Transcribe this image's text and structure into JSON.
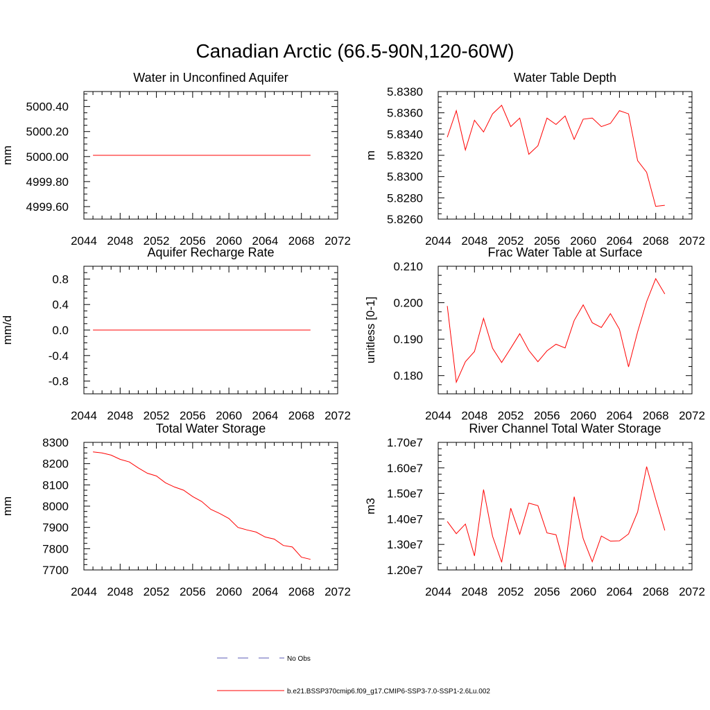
{
  "figure": {
    "title": "Canadian Arctic (66.5-90N,120-60W)"
  },
  "legend": {
    "entries": [
      {
        "label": "No Obs",
        "style": "dashed",
        "color": "#5a5ab4"
      },
      {
        "label": "b.e21.BSSP370cmip6.f09_g17.CMIP6-SSP3-7.0-SSP1-2.6Lu.002",
        "style": "solid",
        "color": "#ff0000"
      }
    ]
  },
  "series_color": "#ff0000",
  "chart_data": [
    {
      "type": "line",
      "title": "Water in Unconfined Aquifer",
      "ylabel": "mm",
      "xlim": [
        2044,
        2072
      ],
      "ylim": [
        4999.5,
        5000.52
      ],
      "xticks": [
        "2044",
        "2048",
        "2052",
        "2056",
        "2060",
        "2064",
        "2068",
        "2072"
      ],
      "yticks": [
        "4999.60",
        "4999.80",
        "5000.00",
        "5000.20",
        "5000.40"
      ],
      "ytick_values": [
        4999.6,
        4999.8,
        5000.0,
        5000.2,
        5000.4
      ],
      "x": [
        2045,
        2046,
        2047,
        2048,
        2049,
        2050,
        2051,
        2052,
        2053,
        2054,
        2055,
        2056,
        2057,
        2058,
        2059,
        2060,
        2061,
        2062,
        2063,
        2064,
        2065,
        2066,
        2067,
        2068,
        2069
      ],
      "values": [
        5000.01,
        5000.01,
        5000.01,
        5000.01,
        5000.01,
        5000.01,
        5000.01,
        5000.01,
        5000.01,
        5000.01,
        5000.01,
        5000.01,
        5000.01,
        5000.01,
        5000.01,
        5000.01,
        5000.01,
        5000.01,
        5000.01,
        5000.01,
        5000.01,
        5000.01,
        5000.01,
        5000.01,
        5000.01
      ]
    },
    {
      "type": "line",
      "title": "Water Table Depth",
      "ylabel": "m",
      "xlim": [
        2044,
        2072
      ],
      "ylim": [
        5.826,
        5.838
      ],
      "xticks": [
        "2044",
        "2048",
        "2052",
        "2056",
        "2060",
        "2064",
        "2068",
        "2072"
      ],
      "yticks": [
        "5.8260",
        "5.8280",
        "5.8300",
        "5.8320",
        "5.8340",
        "5.8360",
        "5.8380"
      ],
      "ytick_values": [
        5.826,
        5.828,
        5.83,
        5.832,
        5.834,
        5.836,
        5.838
      ],
      "x": [
        2045,
        2046,
        2047,
        2048,
        2049,
        2050,
        2051,
        2052,
        2053,
        2054,
        2055,
        2056,
        2057,
        2058,
        2059,
        2060,
        2061,
        2062,
        2063,
        2064,
        2065,
        2066,
        2067,
        2068,
        2069
      ],
      "values": [
        5.8337,
        5.8362,
        5.8325,
        5.8353,
        5.8342,
        5.8359,
        5.8367,
        5.8347,
        5.8355,
        5.8321,
        5.8329,
        5.8355,
        5.8349,
        5.8357,
        5.8335,
        5.8354,
        5.8355,
        5.8347,
        5.835,
        5.8362,
        5.8359,
        5.8315,
        5.8304,
        5.8272,
        5.8273
      ]
    },
    {
      "type": "line",
      "title": "Aquifer Recharge Rate",
      "ylabel": "mm/d",
      "xlim": [
        2044,
        2072
      ],
      "ylim": [
        -1.0,
        1.0
      ],
      "xticks": [
        "2044",
        "2048",
        "2052",
        "2056",
        "2060",
        "2064",
        "2068",
        "2072"
      ],
      "yticks": [
        "-0.8",
        "-0.4",
        "0.0",
        "0.4",
        "0.8"
      ],
      "ytick_values": [
        -0.8,
        -0.4,
        0.0,
        0.4,
        0.8
      ],
      "x": [
        2045,
        2046,
        2047,
        2048,
        2049,
        2050,
        2051,
        2052,
        2053,
        2054,
        2055,
        2056,
        2057,
        2058,
        2059,
        2060,
        2061,
        2062,
        2063,
        2064,
        2065,
        2066,
        2067,
        2068,
        2069
      ],
      "values": [
        0,
        0,
        0,
        0,
        0,
        0,
        0,
        0,
        0,
        0,
        0,
        0,
        0,
        0,
        0,
        0,
        0,
        0,
        0,
        0,
        0,
        0,
        0,
        0,
        0
      ]
    },
    {
      "type": "line",
      "title": "Frac Water Table at Surface",
      "ylabel": "unitless [0-1]",
      "xlim": [
        2044,
        2072
      ],
      "ylim": [
        0.175,
        0.21
      ],
      "xticks": [
        "2044",
        "2048",
        "2052",
        "2056",
        "2060",
        "2064",
        "2068",
        "2072"
      ],
      "yticks": [
        "0.180",
        "0.190",
        "0.200",
        "0.210"
      ],
      "ytick_values": [
        0.18,
        0.19,
        0.2,
        0.21
      ],
      "x": [
        2045,
        2046,
        2047,
        2048,
        2049,
        2050,
        2051,
        2052,
        2053,
        2054,
        2055,
        2056,
        2057,
        2058,
        2059,
        2060,
        2061,
        2062,
        2063,
        2064,
        2065,
        2066,
        2067,
        2068,
        2069
      ],
      "values": [
        0.1991,
        0.1782,
        0.1838,
        0.1866,
        0.1957,
        0.1875,
        0.1836,
        0.1875,
        0.1915,
        0.1869,
        0.1838,
        0.1868,
        0.1886,
        0.1876,
        0.1951,
        0.1994,
        0.1945,
        0.1932,
        0.197,
        0.1927,
        0.1824,
        0.192,
        0.2003,
        0.2066,
        0.2024
      ]
    },
    {
      "type": "line",
      "title": "Total Water Storage",
      "ylabel": "mm",
      "xlim": [
        2044,
        2072
      ],
      "ylim": [
        7700,
        8300
      ],
      "xticks": [
        "2044",
        "2048",
        "2052",
        "2056",
        "2060",
        "2064",
        "2068",
        "2072"
      ],
      "yticks": [
        "7700",
        "7800",
        "7900",
        "8000",
        "8100",
        "8200",
        "8300"
      ],
      "ytick_values": [
        7700,
        7800,
        7900,
        8000,
        8100,
        8200,
        8300
      ],
      "x": [
        2045,
        2046,
        2047,
        2048,
        2049,
        2050,
        2051,
        2052,
        2053,
        2054,
        2055,
        2056,
        2057,
        2058,
        2059,
        2060,
        2061,
        2062,
        2063,
        2064,
        2065,
        2066,
        2067,
        2068,
        2069
      ],
      "values": [
        8255,
        8250,
        8240,
        8220,
        8208,
        8180,
        8155,
        8142,
        8110,
        8090,
        8075,
        8045,
        8022,
        7985,
        7965,
        7942,
        7900,
        7888,
        7878,
        7855,
        7845,
        7815,
        7808,
        7760,
        7750
      ]
    },
    {
      "type": "line",
      "title": "River Channel Total Water Storage",
      "ylabel": "m3",
      "xlim": [
        2044,
        2072
      ],
      "ylim": [
        12000000,
        17000000
      ],
      "xticks": [
        "2044",
        "2048",
        "2052",
        "2056",
        "2060",
        "2064",
        "2068",
        "2072"
      ],
      "yticks": [
        "1.20e7",
        "1.30e7",
        "1.40e7",
        "1.50e7",
        "1.60e7",
        "1.70e7"
      ],
      "ytick_values": [
        12000000,
        13000000,
        14000000,
        15000000,
        16000000,
        17000000
      ],
      "x": [
        2045,
        2046,
        2047,
        2048,
        2049,
        2050,
        2051,
        2052,
        2053,
        2054,
        2055,
        2056,
        2057,
        2058,
        2059,
        2060,
        2061,
        2062,
        2063,
        2064,
        2065,
        2066,
        2067,
        2068,
        2069
      ],
      "values": [
        13900000,
        13420000,
        13800000,
        12550000,
        15150000,
        13320000,
        12300000,
        14420000,
        13400000,
        14620000,
        14520000,
        13450000,
        13380000,
        12080000,
        14870000,
        13230000,
        12320000,
        13330000,
        13130000,
        13140000,
        13410000,
        14270000,
        16050000,
        14770000,
        13550000
      ]
    }
  ]
}
